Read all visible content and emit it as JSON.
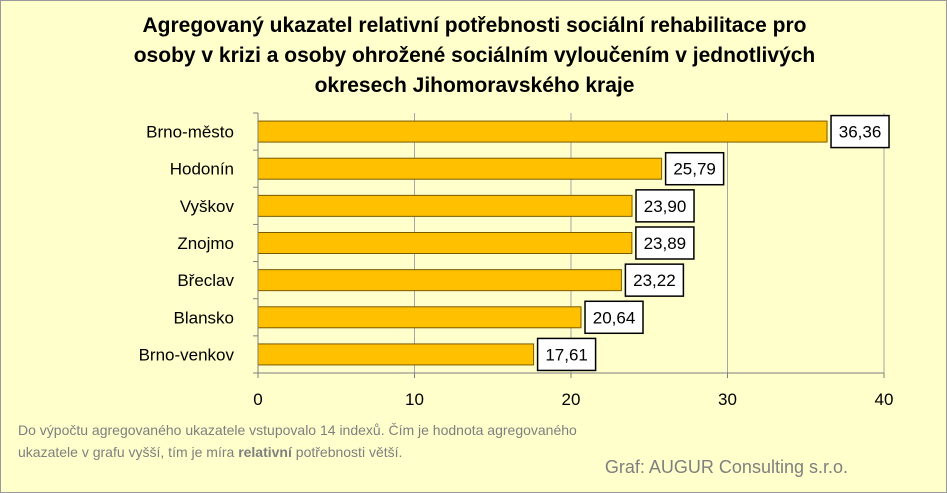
{
  "chart_data": {
    "type": "bar",
    "orientation": "horizontal",
    "title_lines": [
      "Agregovaný ukazatel relativní potřebnosti sociální rehabilitace pro",
      "osoby v krizi a osoby ohrožené sociálním  vyloučením v jednotlivých",
      "okresech Jihomoravského  kraje"
    ],
    "categories": [
      "Brno-město",
      "Hodonín",
      "Vyškov",
      "Znojmo",
      "Břeclav",
      "Blansko",
      "Brno-venkov"
    ],
    "values": [
      36.36,
      25.79,
      23.9,
      23.89,
      23.22,
      20.64,
      17.61
    ],
    "value_labels": [
      "36,36",
      "25,79",
      "23,90",
      "23,89",
      "23,22",
      "20,64",
      "17,61"
    ],
    "xlim": [
      0,
      40
    ],
    "xticks": [
      0,
      10,
      20,
      30,
      40
    ],
    "xtick_labels": [
      "0",
      "10",
      "20",
      "30",
      "40"
    ],
    "grid": "vertical",
    "bar_color": "#ffc000",
    "background_color": "#ffffcc"
  },
  "note": {
    "line1": "Do výpočtu agregovaného ukazatele vstupovalo 14 indexů. Čím je hodnota agregovaného",
    "line2_prefix": "ukazatele v grafu vyšší, tím je míra ",
    "line2_bold": "relativní",
    "line2_suffix": " potřebnosti větší."
  },
  "credit": "Graf: AUGUR Consulting s.r.o."
}
